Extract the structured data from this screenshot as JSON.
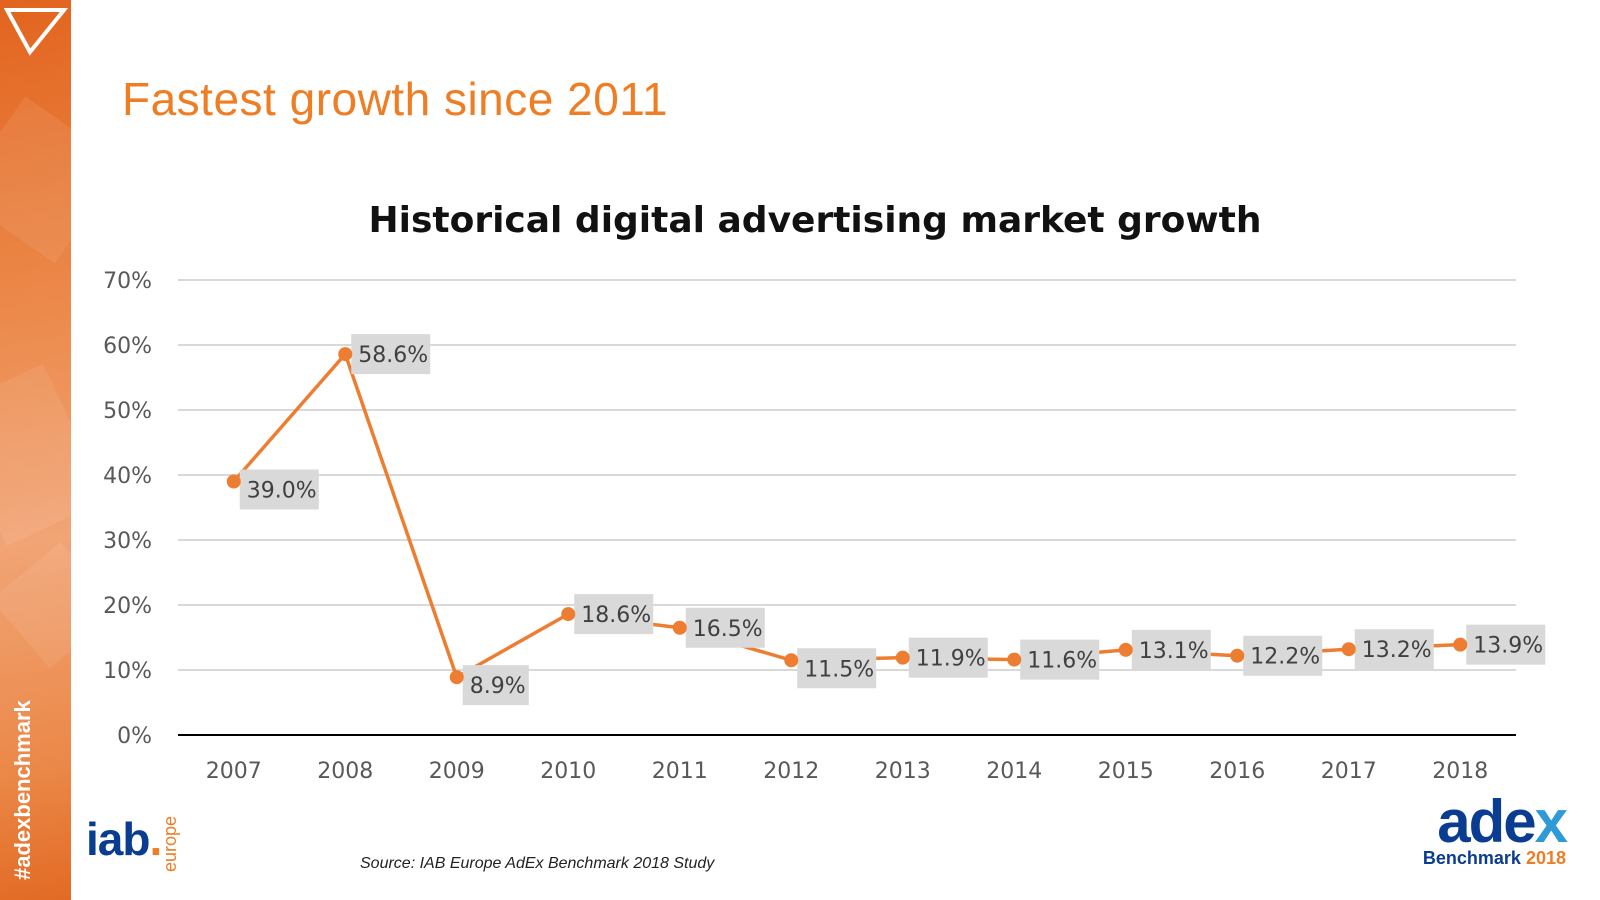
{
  "slide": {
    "title": "Fastest growth since 2011",
    "hashtag": "#adexbenchmark",
    "source": "Source: IAB Europe AdEx Benchmark 2018 Study"
  },
  "logos": {
    "iab_text": "iab",
    "iab_dot": ".",
    "iab_sub": "europe",
    "adex_main": "ade",
    "adex_x": "x",
    "adex_sub": "Benchmark",
    "adex_year": "2018"
  },
  "colors": {
    "accent": "#ef7d24",
    "line": "#ed7d31",
    "label_bg": "#d9d9d9",
    "grid": "#d9d9d9",
    "brand_blue": "#0a3d91"
  },
  "chart_data": {
    "type": "line",
    "title": "Historical digital advertising market growth",
    "categories": [
      "2007",
      "2008",
      "2009",
      "2010",
      "2011",
      "2012",
      "2013",
      "2014",
      "2015",
      "2016",
      "2017",
      "2018"
    ],
    "values": [
      39.0,
      58.6,
      8.9,
      18.6,
      16.5,
      11.5,
      11.9,
      11.6,
      13.1,
      12.2,
      13.2,
      13.9
    ],
    "data_labels": [
      "39.0%",
      "58.6%",
      "8.9%",
      "18.6%",
      "16.5%",
      "11.5%",
      "11.9%",
      "11.6%",
      "13.1%",
      "12.2%",
      "13.2%",
      "13.9%"
    ],
    "ylim": [
      0,
      70
    ],
    "yticks": [
      0,
      10,
      20,
      30,
      40,
      50,
      60,
      70
    ],
    "ytick_labels": [
      "0%",
      "10%",
      "20%",
      "30%",
      "40%",
      "50%",
      "60%",
      "70%"
    ],
    "xlabel": "",
    "ylabel": "",
    "grid": true
  }
}
